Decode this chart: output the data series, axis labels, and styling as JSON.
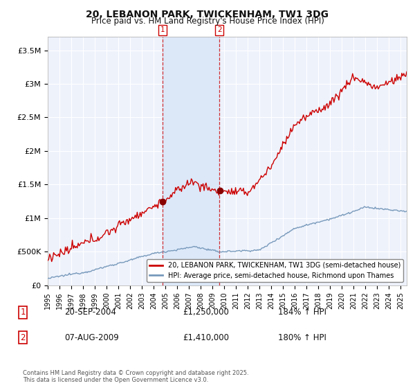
{
  "title": "20, LEBANON PARK, TWICKENHAM, TW1 3DG",
  "subtitle": "Price paid vs. HM Land Registry's House Price Index (HPI)",
  "ylim": [
    0,
    3700000
  ],
  "yticks": [
    0,
    500000,
    1000000,
    1500000,
    2000000,
    2500000,
    3000000,
    3500000
  ],
  "ytick_labels": [
    "£0",
    "£500K",
    "£1M",
    "£1.5M",
    "£2M",
    "£2.5M",
    "£3M",
    "£3.5M"
  ],
  "xlim_start": 1995,
  "xlim_end": 2025.5,
  "background_color": "#ffffff",
  "plot_bg_color": "#eef2fb",
  "grid_color": "#ffffff",
  "sale1_t": 2004.75,
  "sale1_price": 1250000,
  "sale2_t": 2009.583,
  "sale2_price": 1410000,
  "legend1_label": "20, LEBANON PARK, TWICKENHAM, TW1 3DG (semi-detached house)",
  "legend2_label": "HPI: Average price, semi-detached house, Richmond upon Thames",
  "footer": "Contains HM Land Registry data © Crown copyright and database right 2025.\nThis data is licensed under the Open Government Licence v3.0.",
  "red_line_color": "#cc0000",
  "blue_line_color": "#7799bb",
  "shade_color": "#dce8f8",
  "vline_color": "#cc0000",
  "table_rows": [
    {
      "num": "1",
      "date": "20-SEP-2004",
      "price": "£1,250,000",
      "hpi": "184% ↑ HPI"
    },
    {
      "num": "2",
      "date": "07-AUG-2009",
      "price": "£1,410,000",
      "hpi": "180% ↑ HPI"
    }
  ]
}
